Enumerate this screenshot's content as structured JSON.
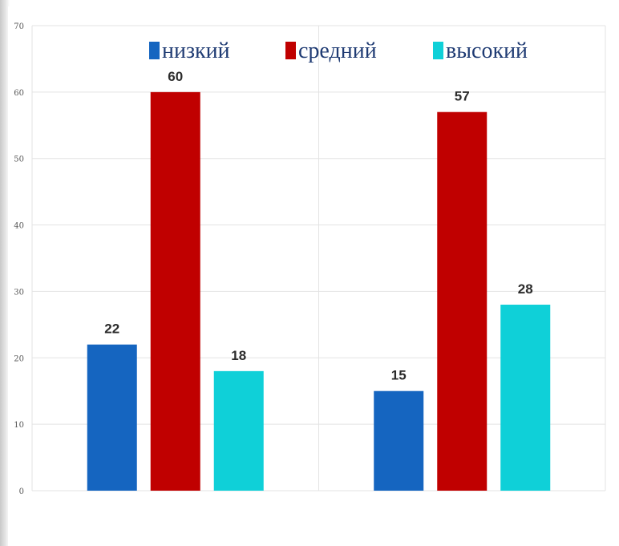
{
  "chart_data": {
    "type": "bar",
    "title": "",
    "xlabel": "",
    "ylabel": "",
    "ylim": [
      0,
      70
    ],
    "yticks": [
      0,
      10,
      20,
      30,
      40,
      50,
      60,
      70
    ],
    "grid": true,
    "legend_position": "top",
    "groups": 2,
    "series": [
      {
        "name": "низкий",
        "color": "#1565c0",
        "values": [
          22,
          15
        ]
      },
      {
        "name": "средний",
        "color": "#c00000",
        "values": [
          60,
          57
        ]
      },
      {
        "name": "высокий",
        "color": "#0fd0d8",
        "values": [
          18,
          28
        ]
      }
    ]
  }
}
